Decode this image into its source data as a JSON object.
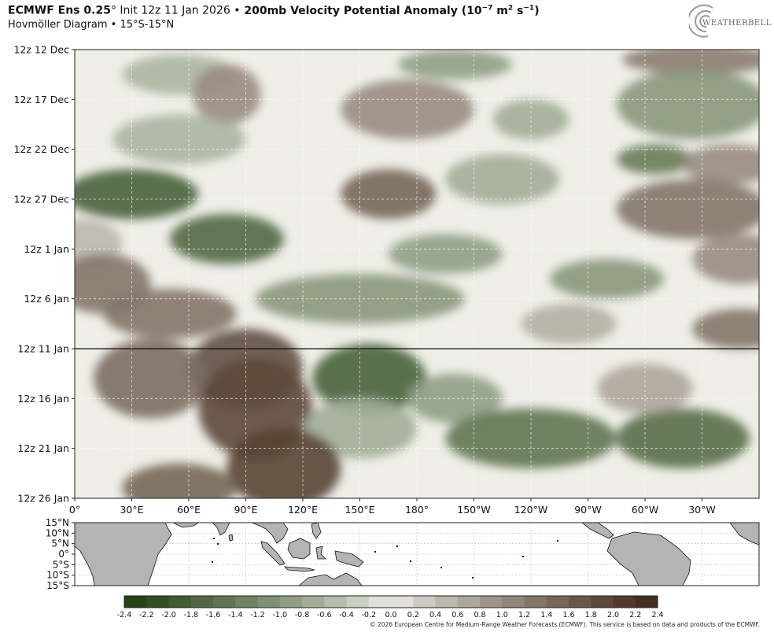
{
  "header": {
    "model": "ECMWF Ens 0.25",
    "degree": "°",
    "init": " Init 12z 11 Jan 2026 ",
    "bullet": "•",
    "field": " 200mb Velocity Potential Anomaly (10",
    "exp": "−7",
    "units_mid": " m",
    "exp2": "2",
    "units_end": " s",
    "exp3": "−1",
    "close": ")",
    "subtitle": "Hovmöller Diagram • 15°S-15°N"
  },
  "logo": {
    "name": "weatherbell-logo",
    "text": "WEATHERBELL"
  },
  "credit": "© 2026 European Centre for Medium-Range Weather Forecasts (ECMWF). This service is based on data and products of the ECMWF.",
  "chart_data": {
    "type": "heatmap",
    "title": "200mb Velocity Potential Anomaly",
    "y_ticks": [
      "12z 12 Dec",
      "12z 17 Dec",
      "12z 22 Dec",
      "12z 27 Dec",
      "12z 1 Jan",
      "12z 6 Jan",
      "12z 11 Jan",
      "12z 16 Jan",
      "12z 21 Jan",
      "12z 26 Jan"
    ],
    "x_ticks": [
      "0°",
      "30°E",
      "60°E",
      "90°E",
      "120°E",
      "150°E",
      "180°",
      "150°W",
      "120°W",
      "90°W",
      "60°W",
      "30°W"
    ],
    "x_tick_lons": [
      0,
      30,
      60,
      90,
      120,
      150,
      180,
      210,
      240,
      270,
      300,
      330
    ],
    "x_range": [
      0,
      360
    ],
    "init_line": "12z 11 Jan",
    "map_lat_ticks": [
      "15°N",
      "10°N",
      "5°N",
      "0°",
      "5°S",
      "10°S",
      "15°S"
    ],
    "colorbar": {
      "ticks": [
        "-2.4",
        "-2.2",
        "-2.0",
        "-1.8",
        "-1.6",
        "-1.4",
        "-1.2",
        "-1.0",
        "-0.8",
        "-0.6",
        "-0.4",
        "-0.2",
        "0.0",
        "0.2",
        "0.4",
        "0.6",
        "0.8",
        "1.0",
        "1.2",
        "1.4",
        "1.6",
        "1.8",
        "2.0",
        "2.2",
        "2.4"
      ],
      "negative_color": "#1e3d0c",
      "neutral_color": "#f0f0ea",
      "positive_color": "#3e2716"
    },
    "anomaly_blobs": [
      {
        "day": 1.5,
        "lon": 200,
        "value": -0.9,
        "rx": 30,
        "ry": 1.5
      },
      {
        "day": 1.0,
        "lon": 328,
        "value": 1.2,
        "rx": 40,
        "ry": 1.5
      },
      {
        "day": 2.5,
        "lon": 55,
        "value": -0.6,
        "rx": 30,
        "ry": 2.0
      },
      {
        "day": 4.5,
        "lon": 80,
        "value": 1.0,
        "rx": 18,
        "ry": 3.0
      },
      {
        "day": 6.0,
        "lon": 175,
        "value": 1.0,
        "rx": 35,
        "ry": 3.0
      },
      {
        "day": 5.5,
        "lon": 325,
        "value": -1.0,
        "rx": 40,
        "ry": 3.5
      },
      {
        "day": 7.0,
        "lon": 240,
        "value": -0.7,
        "rx": 20,
        "ry": 2.0
      },
      {
        "day": 9.0,
        "lon": 55,
        "value": -0.6,
        "rx": 35,
        "ry": 2.5
      },
      {
        "day": 11.0,
        "lon": 305,
        "value": -1.4,
        "rx": 20,
        "ry": 1.5
      },
      {
        "day": 11.5,
        "lon": 345,
        "value": 1.0,
        "rx": 25,
        "ry": 2.0
      },
      {
        "day": 14.5,
        "lon": 30,
        "value": -1.8,
        "rx": 35,
        "ry": 2.5
      },
      {
        "day": 14.5,
        "lon": 165,
        "value": 1.5,
        "rx": 25,
        "ry": 2.5
      },
      {
        "day": 13.0,
        "lon": 225,
        "value": -0.7,
        "rx": 30,
        "ry": 2.5
      },
      {
        "day": 16.0,
        "lon": 325,
        "value": 1.3,
        "rx": 40,
        "ry": 3.0
      },
      {
        "day": 19.0,
        "lon": 80,
        "value": -1.7,
        "rx": 30,
        "ry": 2.5
      },
      {
        "day": 19.5,
        "lon": 5,
        "value": 0.5,
        "rx": 20,
        "ry": 2.5
      },
      {
        "day": 20.5,
        "lon": 195,
        "value": -0.9,
        "rx": 30,
        "ry": 2.0
      },
      {
        "day": 21.0,
        "lon": 350,
        "value": 1.0,
        "rx": 25,
        "ry": 2.5
      },
      {
        "day": 23.5,
        "lon": 15,
        "value": 1.3,
        "rx": 25,
        "ry": 3.0
      },
      {
        "day": 23.0,
        "lon": 280,
        "value": -1.0,
        "rx": 30,
        "ry": 2.0
      },
      {
        "day": 25.0,
        "lon": 150,
        "value": -1.0,
        "rx": 55,
        "ry": 2.5
      },
      {
        "day": 26.5,
        "lon": 50,
        "value": 1.3,
        "rx": 35,
        "ry": 2.5
      },
      {
        "day": 27.5,
        "lon": 260,
        "value": 0.6,
        "rx": 25,
        "ry": 2.0
      },
      {
        "day": 28.0,
        "lon": 350,
        "value": 1.3,
        "rx": 25,
        "ry": 2.0
      },
      {
        "day": 32.0,
        "lon": 90,
        "value": 1.8,
        "rx": 30,
        "ry": 4.0
      },
      {
        "day": 33.0,
        "lon": 40,
        "value": 1.4,
        "rx": 30,
        "ry": 4.0
      },
      {
        "day": 36.0,
        "lon": 95,
        "value": 1.9,
        "rx": 30,
        "ry": 5.0
      },
      {
        "day": 33.0,
        "lon": 155,
        "value": -1.8,
        "rx": 30,
        "ry": 3.5
      },
      {
        "day": 35.0,
        "lon": 200,
        "value": -0.9,
        "rx": 25,
        "ry": 2.5
      },
      {
        "day": 38.0,
        "lon": 150,
        "value": -0.7,
        "rx": 30,
        "ry": 3.0
      },
      {
        "day": 39.0,
        "lon": 240,
        "value": -1.5,
        "rx": 45,
        "ry": 3.0
      },
      {
        "day": 39.0,
        "lon": 320,
        "value": -1.6,
        "rx": 35,
        "ry": 3.0
      },
      {
        "day": 34.0,
        "lon": 300,
        "value": 0.7,
        "rx": 25,
        "ry": 2.5
      },
      {
        "day": 42.0,
        "lon": 110,
        "value": 2.0,
        "rx": 30,
        "ry": 4.0
      },
      {
        "day": 44.0,
        "lon": 55,
        "value": 1.5,
        "rx": 30,
        "ry": 2.5
      }
    ]
  }
}
